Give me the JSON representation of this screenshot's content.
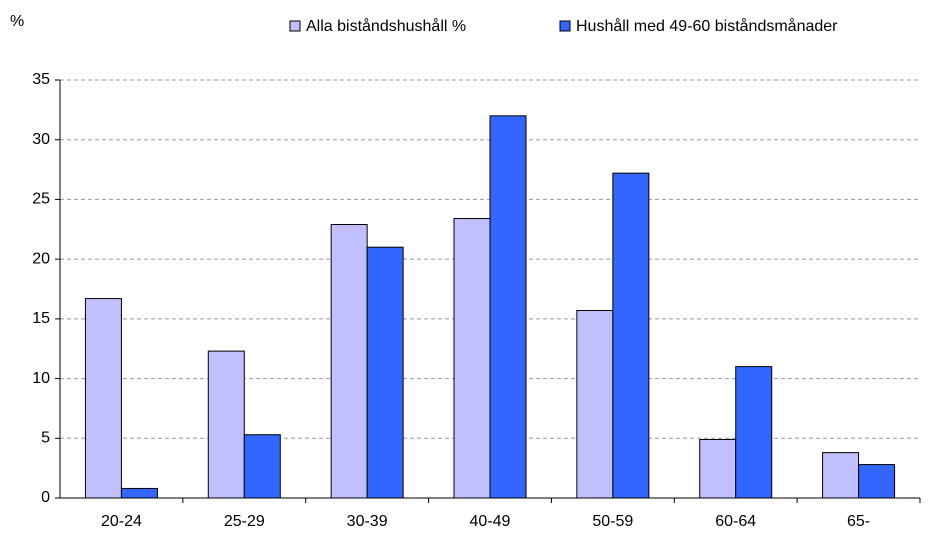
{
  "chart_data": {
    "type": "bar",
    "y_label": "%",
    "categories": [
      "20-24",
      "25-29",
      "30-39",
      "40-49",
      "50-59",
      "60-64",
      "65-"
    ],
    "series": [
      {
        "name": "Alla biståndshushåll %",
        "color": "#c0c0ff",
        "values": [
          16.7,
          12.3,
          22.9,
          23.4,
          15.7,
          4.9,
          3.8
        ]
      },
      {
        "name": "Hushåll med 49-60 biståndsmånader",
        "color": "#3366ff",
        "values": [
          0.8,
          5.3,
          21.0,
          32.0,
          27.2,
          11.0,
          2.8
        ]
      }
    ],
    "ylim": [
      0,
      35
    ],
    "yticks": [
      0,
      5,
      10,
      15,
      20,
      25,
      30,
      35
    ],
    "grid": true
  }
}
